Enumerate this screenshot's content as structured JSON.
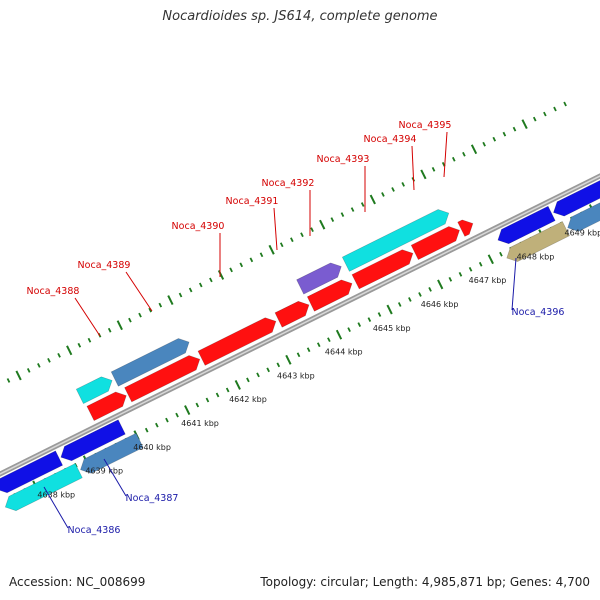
{
  "title": "Nocardioides sp. JS614, complete genome",
  "footer": {
    "accession": "Accession: NC_008699",
    "topology": "Topology: circular; Length: 4,985,871 bp; Genes: 4,700"
  },
  "colors": {
    "forward_label": "#d40000",
    "reverse_label": "#1a1aa8",
    "backbone": "#9a9a9a",
    "tick": "#1f7a1f",
    "red_gene": "#ff1010",
    "blue_gene": "#1010e6",
    "cyan_gene": "#10e0e0",
    "steel_gene": "#4a86be",
    "purple_gene": "#7a5cd0",
    "khaki_gene": "#bfb07a"
  },
  "tick_labels": [
    "4638 kbp",
    "4639 kbp",
    "4640 kbp",
    "4641 kbp",
    "4642 kbp",
    "4643 kbp",
    "4644 kbp",
    "4645 kbp",
    "4646 kbp",
    "4647 kbp",
    "4648 kbp",
    "4649 kbp"
  ],
  "forward_genes": [
    "Noca_4388",
    "Noca_4389",
    "Noca_4390",
    "Noca_4391",
    "Noca_4392",
    "Noca_4393",
    "Noca_4394",
    "Noca_4395"
  ],
  "reverse_genes": [
    "Noca_4386",
    "Noca_4387",
    "Noca_4396"
  ]
}
